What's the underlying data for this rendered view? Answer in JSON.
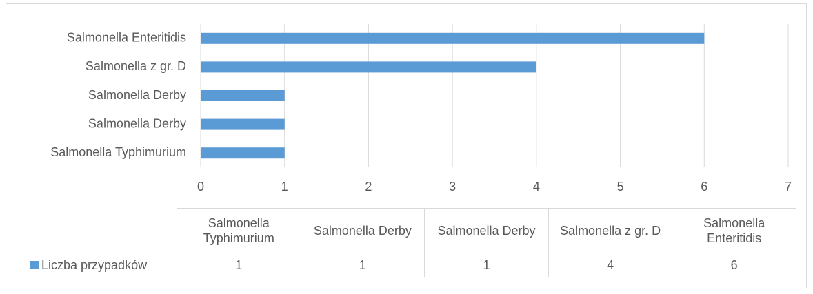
{
  "chart_data": {
    "type": "bar",
    "orientation": "horizontal",
    "categories": [
      "Salmonella Typhimurium",
      "Salmonella Derby",
      "Salmonella Derby",
      "Salmonella z gr. D",
      "Salmonella Enteritidis"
    ],
    "series": [
      {
        "name": "Liczba przypadków",
        "color": "#5b9bd5",
        "values": [
          1,
          1,
          1,
          4,
          6
        ]
      }
    ],
    "xlim": [
      0,
      7
    ],
    "xticks": [
      0,
      1,
      2,
      3,
      4,
      5,
      6,
      7
    ],
    "grid": true,
    "data_table": true
  }
}
